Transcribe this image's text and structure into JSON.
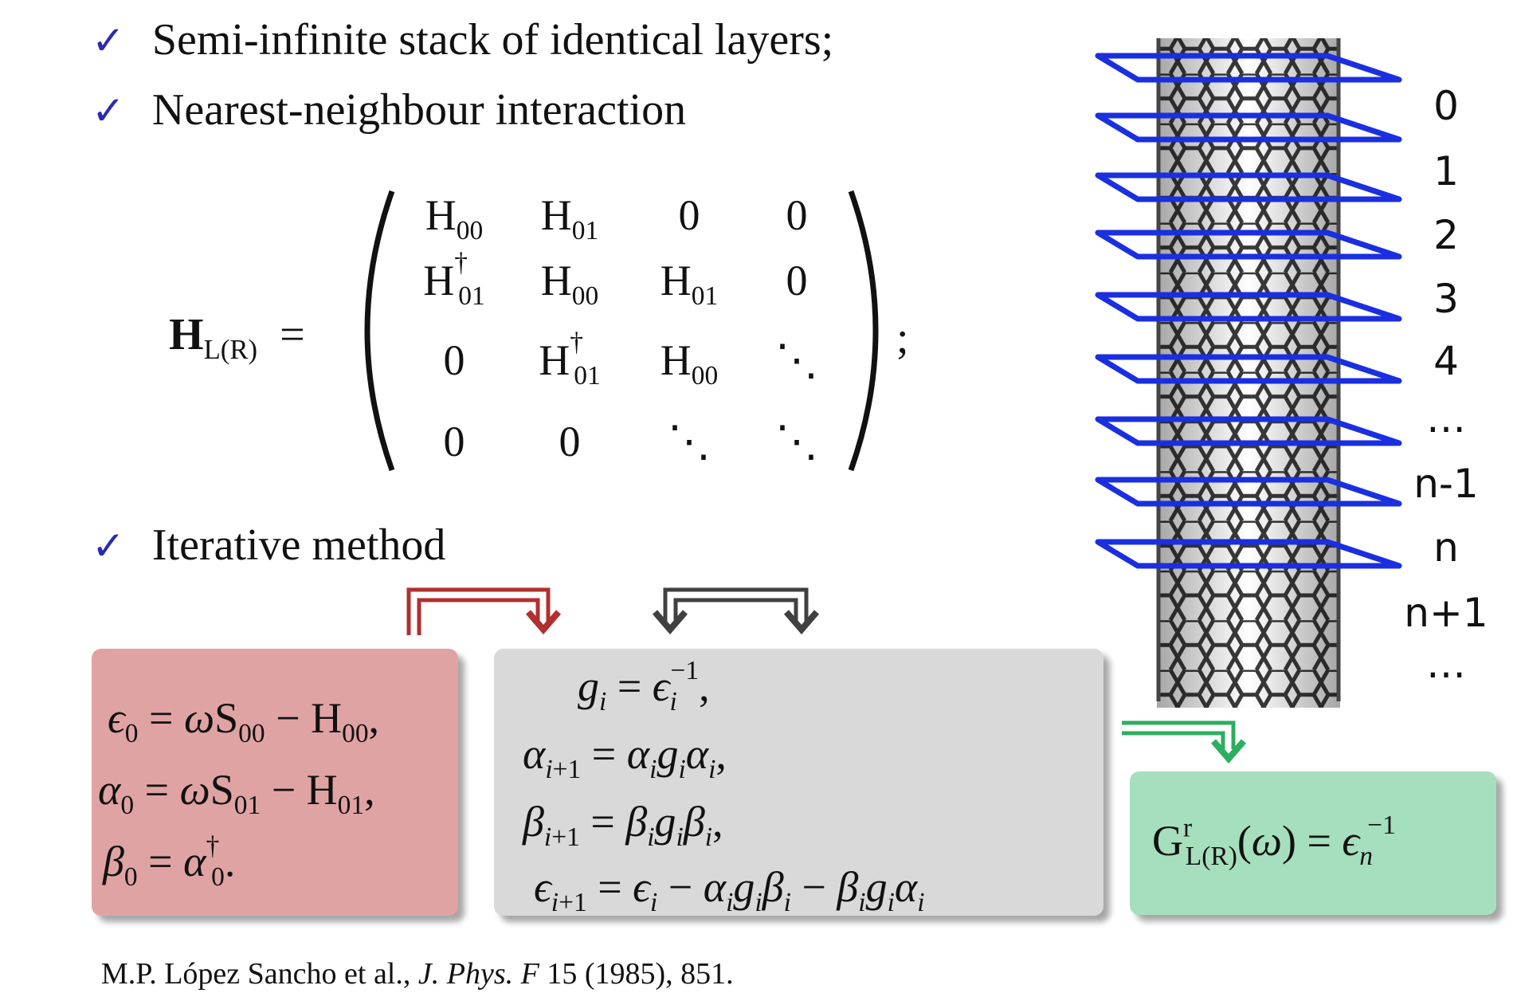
{
  "bullets": [
    {
      "icon": "check-icon",
      "text": "Semi-infinite stack of identical layers;"
    },
    {
      "icon": "check-icon",
      "text": "Nearest-neighbour interaction"
    },
    {
      "icon": "check-icon",
      "text": "Iterative method"
    }
  ],
  "matrix": {
    "lhs_bold": "H",
    "lhs_sub": "L(R)",
    "equals": "=",
    "trailing": ";",
    "rows": [
      [
        "H00",
        "H01",
        "0",
        "0"
      ],
      [
        "H01†",
        "H00",
        "H01",
        "0"
      ],
      [
        "0",
        "H01†",
        "H00",
        "⋱"
      ],
      [
        "0",
        "0",
        "⋱",
        "⋱"
      ]
    ]
  },
  "init_box": {
    "color": "#e0a3a3",
    "lines": [
      "ϵ0 = ωS00 − H00,",
      "α0 = ωS01 − H01,",
      "β0 = α0†."
    ]
  },
  "iter_box": {
    "color": "#d9d9d9",
    "lines": [
      "gi = ϵi−1,",
      "αi+1 = αi gi αi,",
      "βi+1 = βi gi βi,",
      "ϵi+1 = ϵi − αi gi βi − βi gi αi"
    ]
  },
  "result_box": {
    "color": "#a6dfbd",
    "text": "GrL(R)(ω) = ϵn−1"
  },
  "arrows": {
    "red": "#b03030",
    "dark": "#404040",
    "green": "#2eae60"
  },
  "layers": {
    "plane_color": "#1a2fe0",
    "labels": [
      "0",
      "1",
      "2",
      "3",
      "4",
      "…",
      "n-1",
      "n",
      "n+1",
      "…"
    ]
  },
  "reference": {
    "authors": "M.P. López Sancho et al.,",
    "journal": "J. Phys. F",
    "details": "15 (1985), 851."
  }
}
